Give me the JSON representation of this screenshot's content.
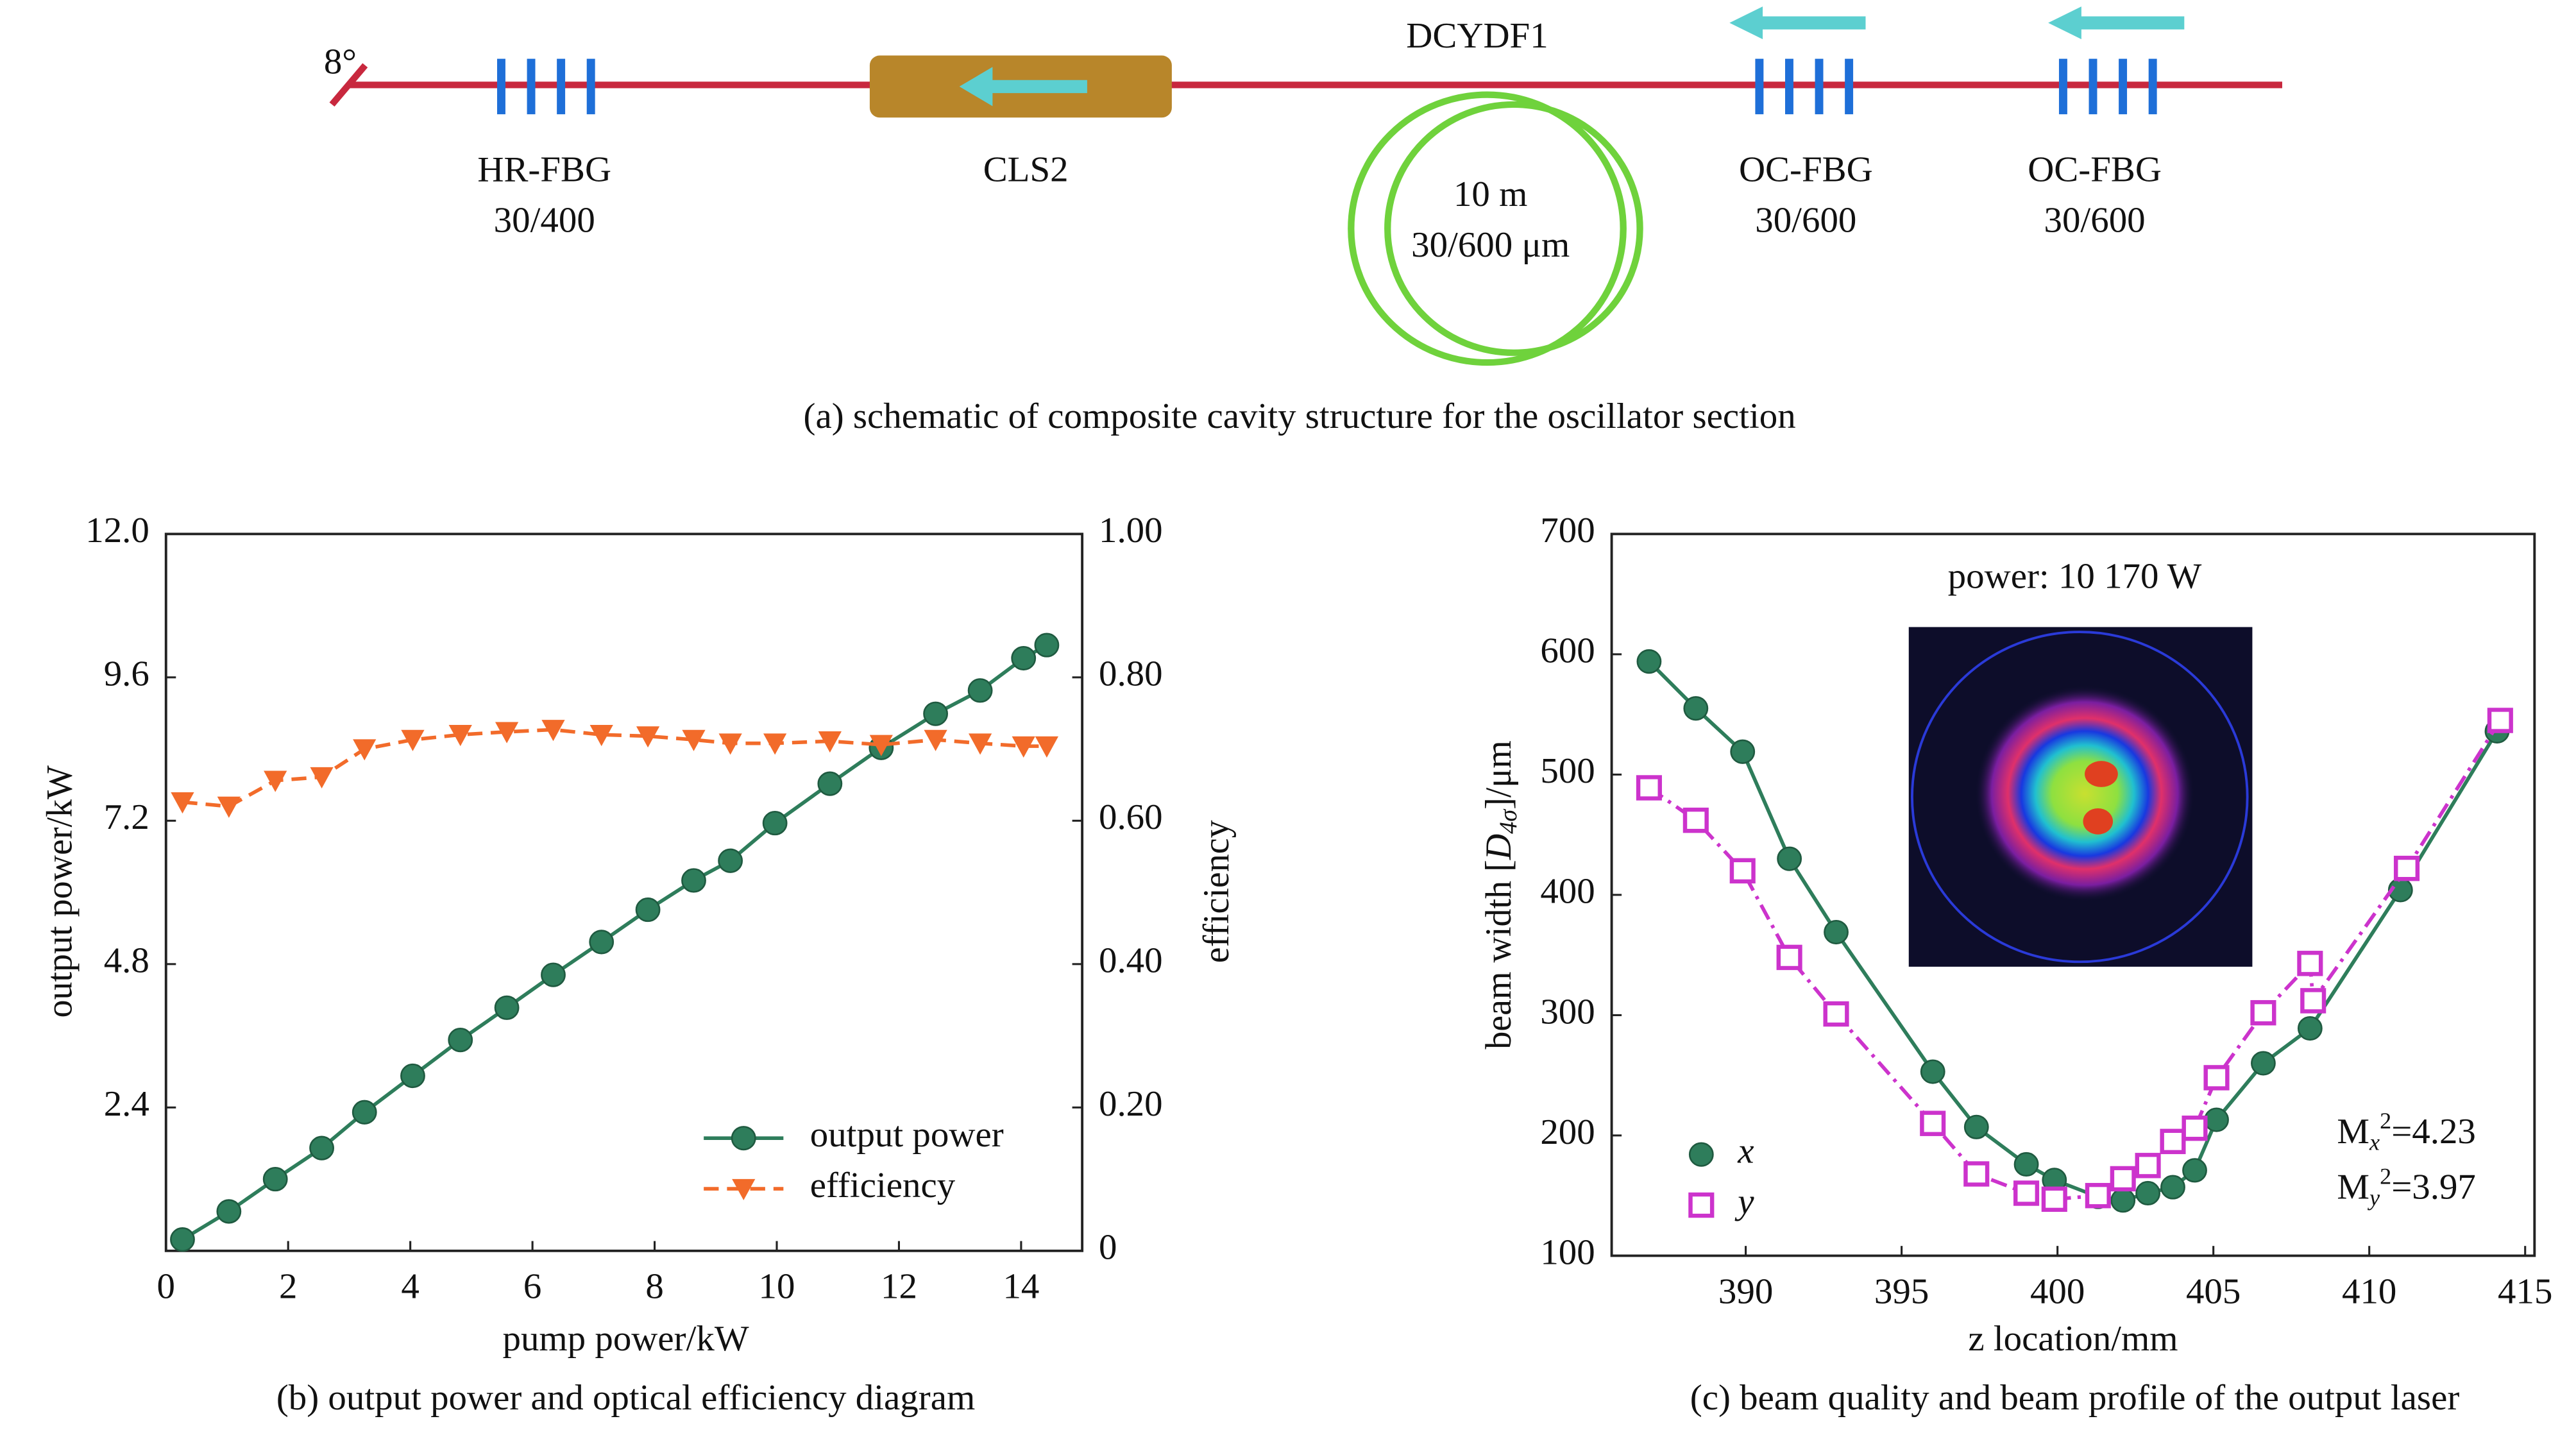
{
  "schematic": {
    "angle": "8°",
    "hr_fbg": {
      "name": "HR-FBG",
      "spec": "30/400"
    },
    "cls": "CLS2",
    "fiber": {
      "name": "DCYDF1",
      "length": "10 m",
      "spec": "30/600 μm"
    },
    "oc_fbg_1": {
      "name": "OC-FBG",
      "spec": "30/600"
    },
    "oc_fbg_2": {
      "name": "OC-FBG",
      "spec": "30/600"
    },
    "caption": "(a) schematic of composite cavity structure for the oscillator section"
  },
  "chart_data": [
    {
      "type": "line",
      "caption": "(b) output power and optical efficiency diagram",
      "xlabel": "pump power/kW",
      "ylabel": "output power/kW",
      "y2label": "efficiency",
      "x": [
        0.27,
        1.03,
        1.79,
        2.55,
        3.25,
        4.04,
        4.82,
        5.58,
        6.34,
        7.13,
        7.89,
        8.64,
        9.24,
        9.97,
        10.87,
        11.71,
        12.6,
        13.33,
        14.04,
        14.42
      ],
      "series": [
        {
          "name": "output power",
          "color": "#2e7d5b",
          "marker": "circle",
          "line_style": "solid",
          "axis": "y",
          "values": [
            0.19,
            0.66,
            1.2,
            1.72,
            2.32,
            2.93,
            3.53,
            4.07,
            4.62,
            5.17,
            5.71,
            6.2,
            6.53,
            7.16,
            7.82,
            8.42,
            8.99,
            9.38,
            9.92,
            10.14
          ]
        },
        {
          "name": "efficiency",
          "color": "#f26b2a",
          "marker": "triangle-down",
          "line_style": "dash",
          "axis": "y2",
          "values": [
            0.626,
            0.62,
            0.656,
            0.661,
            0.7,
            0.713,
            0.72,
            0.724,
            0.727,
            0.72,
            0.718,
            0.713,
            0.708,
            0.708,
            0.711,
            0.706,
            0.713,
            0.708,
            0.704,
            0.704
          ]
        }
      ],
      "xlim": [
        0,
        15
      ],
      "xticks": [
        0,
        2,
        4,
        6,
        8,
        10,
        12,
        14
      ],
      "ylim": [
        0,
        12
      ],
      "yticks": [
        2.4,
        4.8,
        7.2,
        9.6,
        {
          "value": 12,
          "label": "12.0"
        }
      ],
      "y2lim": [
        0,
        1
      ],
      "y2ticks": [
        0,
        {
          "value": 0.2,
          "label": "0.20"
        },
        {
          "value": 0.4,
          "label": "0.40"
        },
        {
          "value": 0.6,
          "label": "0.60"
        },
        {
          "value": 0.8,
          "label": "0.80"
        },
        {
          "value": 1,
          "label": "1.00"
        }
      ],
      "legend": "lower right",
      "legend_markers_only": false
    },
    {
      "type": "line",
      "caption": "(c) beam quality and beam profile of the output laser",
      "xlabel": "z location/mm",
      "ylabel": {
        "text": "beam width [",
        "symbol": "D",
        "sub": "4σ",
        "end": "]/μm"
      },
      "annotations": [
        {
          "text": "power: 10 170 W"
        },
        {
          "base": "M",
          "sub": "x",
          "sup": "2",
          "text": "=4.23"
        },
        {
          "base": "M",
          "sub": "y",
          "sup": "2",
          "text": "=3.97"
        }
      ],
      "series": [
        {
          "name": "x",
          "color": "#2e7d5b",
          "marker": "circle",
          "line_style": "solid",
          "x": [
            386.9,
            388.4,
            389.9,
            391.4,
            392.9,
            396.0,
            397.4,
            399.0,
            399.9,
            401.3,
            402.1,
            402.9,
            403.7,
            404.4,
            405.1,
            406.6,
            408.1,
            411.0,
            414.1
          ],
          "values": [
            594,
            555,
            519,
            430,
            369,
            253,
            207,
            176,
            163,
            149,
            146,
            152,
            157,
            171,
            213,
            260,
            289,
            404,
            536
          ]
        },
        {
          "name": "y",
          "color": "#cc33cc",
          "marker": "square",
          "line_style": "dashdot",
          "x": [
            386.9,
            388.4,
            389.9,
            391.4,
            392.9,
            396.0,
            397.4,
            399.0,
            399.9,
            401.3,
            402.1,
            402.9,
            403.7,
            404.4,
            405.1,
            406.6,
            408.1,
            408.2,
            411.2,
            414.2
          ],
          "values": [
            489,
            462,
            420,
            348,
            301,
            210,
            168,
            152,
            147,
            150,
            164,
            175,
            195,
            206,
            248,
            302,
            343,
            312,
            422,
            545
          ]
        }
      ],
      "xlim": [
        385.7,
        415.3
      ],
      "xticks": [
        390,
        395,
        400,
        405,
        410,
        415
      ],
      "ylim": [
        100,
        700
      ],
      "yticks": [
        100,
        200,
        300,
        400,
        500,
        600,
        700
      ],
      "legend": "lower left",
      "legend_markers_only": true
    }
  ]
}
